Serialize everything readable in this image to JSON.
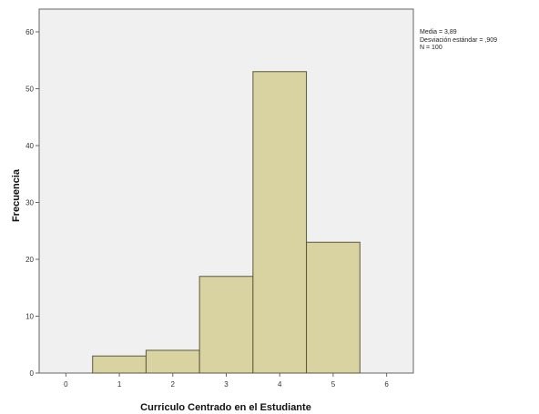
{
  "chart_data": {
    "type": "bar",
    "categories": [
      "1",
      "2",
      "3",
      "4",
      "5"
    ],
    "values": [
      3,
      4,
      17,
      53,
      23
    ],
    "bin_centers": [
      1,
      2,
      3,
      4,
      5
    ],
    "x_ticks": [
      "0",
      "1",
      "2",
      "3",
      "4",
      "5",
      "6"
    ],
    "y_ticks": [
      "0",
      "10",
      "20",
      "30",
      "40",
      "50",
      "60"
    ],
    "xlim": [
      -0.5,
      6.5
    ],
    "ylim": [
      0,
      64
    ],
    "xlabel": "Curriculo Centrado en el Estudiante",
    "ylabel": "Frecuencia",
    "grid": false,
    "legend": "none",
    "colors": {
      "bar_fill": "#d9d3a2",
      "bar_stroke": "#5a5a3c",
      "plot_background": "#f0f0f0",
      "frame": "#666666"
    }
  },
  "stats": {
    "mean": "Media = 3,89",
    "std": "Desviación estándar = ,909",
    "n": "N = 100"
  }
}
